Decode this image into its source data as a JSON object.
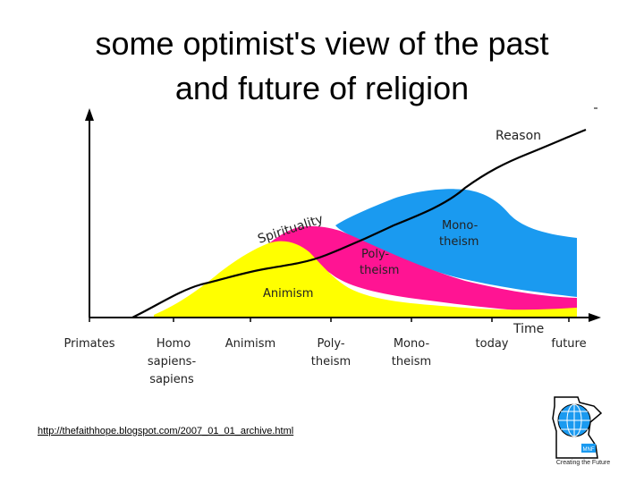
{
  "title": {
    "line1": "some optimist's view of the past",
    "line2": "and future of religion"
  },
  "diagram": {
    "region_labels": {
      "reason": "Reason",
      "spirituality": "Spirituality",
      "monotheism_line1": "Mono-",
      "monotheism_line2": "theism",
      "polytheism_line1": "Poly-",
      "polytheism_line2": "theism",
      "animism": "Animism",
      "time": "Time"
    },
    "x_axis_labels": [
      {
        "lines": [
          "Primates"
        ]
      },
      {
        "lines": [
          "Homo",
          "sapiens-",
          "sapiens"
        ]
      },
      {
        "lines": [
          "Animism"
        ]
      },
      {
        "lines": [
          "Poly-",
          "theism"
        ]
      },
      {
        "lines": [
          "Mono-",
          "theism"
        ]
      },
      {
        "lines": [
          "today"
        ]
      },
      {
        "lines": [
          "future"
        ]
      }
    ],
    "colors": {
      "monotheism": "#1a9af0",
      "polytheism": "#ff1493",
      "animism": "#ffff00",
      "reason_line": "#000000"
    }
  },
  "link": {
    "text": "http://thefaithhope.blogspot.com/2007_01_01_archive.html"
  },
  "logo": {
    "icon": "globe-map-icon",
    "badge": "MNF",
    "caption": "Creating the Future"
  }
}
